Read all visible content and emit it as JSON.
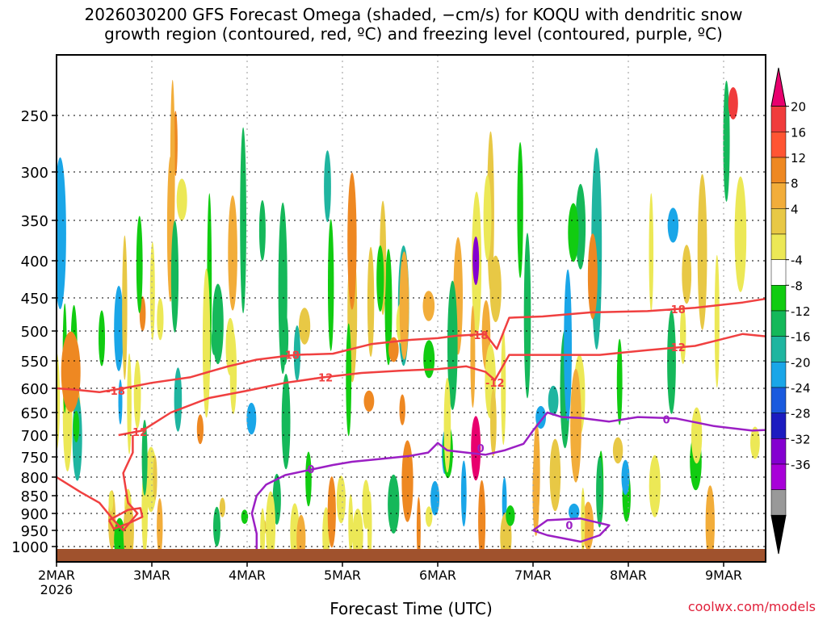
{
  "title": "2026030200 GFS Forecast Omega (shaded, −cm/s) for KOQU with dendritic snow\ngrowth region (contoured, red, ºC) and freezing level (contoured, purple, ºC)",
  "credit": "coolwx.com/models",
  "chart_data": {
    "type": "heatmap",
    "title": "2026030200 GFS Forecast Omega (shaded, −cm/s) for KOQU with dendritic snow growth region (contoured, red, ºC) and freezing level (contoured, purple, ºC)",
    "xlabel": "Forecast Time (UTC)",
    "ylabel": "",
    "x_ticks": [
      "2MAR\n2026",
      "3MAR",
      "4MAR",
      "5MAR",
      "6MAR",
      "7MAR",
      "8MAR",
      "9MAR"
    ],
    "x_range_days": [
      0,
      7.5
    ],
    "y_ticks": [
      250,
      300,
      350,
      400,
      450,
      500,
      550,
      600,
      650,
      700,
      750,
      800,
      850,
      900,
      950,
      1000
    ],
    "y_range": [
      1025,
      200
    ],
    "y_scale": "pressure",
    "grid": true,
    "colorbar": {
      "labels": [
        20,
        16,
        12,
        8,
        4,
        -4,
        -8,
        -12,
        -16,
        -20,
        -24,
        -28,
        -32,
        -36
      ],
      "colors": [
        "#e8006e",
        "#f03c3c",
        "#ff5533",
        "#ee8822",
        "#f2ad3a",
        "#e8c845",
        "#ece856",
        "#ffffff",
        "#11cc11",
        "#15b85a",
        "#1fb5a0",
        "#1aa6e8",
        "#1a5ade",
        "#1c1cc0",
        "#8400d0",
        "#a800d8",
        "#999999",
        "#000000"
      ]
    },
    "contours_red_degC": [
      {
        "label": "-18",
        "points": [
          [
            0.0,
            600
          ],
          [
            0.2,
            603
          ],
          [
            0.45,
            608
          ],
          [
            0.7,
            600
          ],
          [
            1.0,
            590
          ],
          [
            1.4,
            580
          ],
          [
            1.8,
            560
          ],
          [
            2.1,
            548
          ],
          [
            2.5,
            540
          ],
          [
            2.9,
            538
          ],
          [
            3.3,
            522
          ],
          [
            3.7,
            515
          ],
          [
            4.0,
            512
          ],
          [
            4.2,
            508
          ],
          [
            4.5,
            505
          ],
          [
            4.62,
            530
          ],
          [
            4.75,
            480
          ],
          [
            5.1,
            478
          ],
          [
            5.6,
            472
          ],
          [
            6.2,
            470
          ],
          [
            6.7,
            465
          ],
          [
            7.2,
            457
          ],
          [
            7.5,
            450
          ]
        ]
      },
      {
        "label": "-12",
        "points": [
          [
            0.65,
            700
          ],
          [
            0.9,
            690
          ],
          [
            1.2,
            650
          ],
          [
            1.6,
            620
          ],
          [
            2.0,
            605
          ],
          [
            2.4,
            590
          ],
          [
            2.8,
            580
          ],
          [
            3.2,
            572
          ],
          [
            3.6,
            568
          ],
          [
            4.0,
            565
          ],
          [
            4.3,
            560
          ],
          [
            4.5,
            570
          ],
          [
            4.6,
            585
          ],
          [
            4.75,
            540
          ],
          [
            5.2,
            540
          ],
          [
            5.7,
            540
          ],
          [
            6.2,
            532
          ],
          [
            6.7,
            525
          ],
          [
            7.2,
            505
          ],
          [
            7.5,
            510
          ]
        ]
      },
      {
        "label": "",
        "points": [
          [
            0.0,
            800
          ],
          [
            0.25,
            840
          ],
          [
            0.45,
            870
          ],
          [
            0.6,
            920
          ],
          [
            0.7,
            950
          ],
          [
            0.85,
            900
          ],
          [
            0.75,
            870
          ],
          [
            0.7,
            790
          ],
          [
            0.8,
            740
          ],
          [
            0.8,
            700
          ]
        ]
      },
      {
        "label": "",
        "points": [
          [
            0.55,
            920
          ],
          [
            0.75,
            890
          ],
          [
            0.88,
            885
          ],
          [
            0.9,
            910
          ],
          [
            0.75,
            930
          ],
          [
            0.6,
            945
          ],
          [
            0.55,
            920
          ]
        ]
      }
    ],
    "contours_purple_degC": [
      {
        "label": "0",
        "points": [
          [
            1.95,
            1025
          ],
          [
            2.1,
            1005
          ],
          [
            2.1,
            960
          ],
          [
            2.05,
            900
          ],
          [
            2.1,
            850
          ],
          [
            2.2,
            820
          ],
          [
            2.4,
            795
          ],
          [
            2.7,
            780
          ],
          [
            2.9,
            770
          ],
          [
            3.1,
            762
          ],
          [
            3.4,
            755
          ],
          [
            3.7,
            748
          ],
          [
            3.9,
            740
          ],
          [
            4.0,
            718
          ],
          [
            4.1,
            735
          ],
          [
            4.3,
            740
          ],
          [
            4.5,
            745
          ],
          [
            4.7,
            735
          ],
          [
            4.9,
            720
          ],
          [
            5.0,
            690
          ],
          [
            5.15,
            650
          ],
          [
            5.3,
            660
          ],
          [
            5.5,
            662
          ],
          [
            5.8,
            670
          ],
          [
            6.1,
            660
          ],
          [
            6.5,
            663
          ],
          [
            6.9,
            680
          ],
          [
            7.3,
            690
          ],
          [
            7.5,
            688
          ]
        ]
      },
      {
        "label": "0",
        "points": [
          [
            5.0,
            950
          ],
          [
            5.15,
            920
          ],
          [
            5.5,
            915
          ],
          [
            5.8,
            935
          ],
          [
            5.7,
            965
          ],
          [
            5.5,
            985
          ],
          [
            5.15,
            965
          ],
          [
            5.0,
            950
          ]
        ]
      }
    ]
  }
}
